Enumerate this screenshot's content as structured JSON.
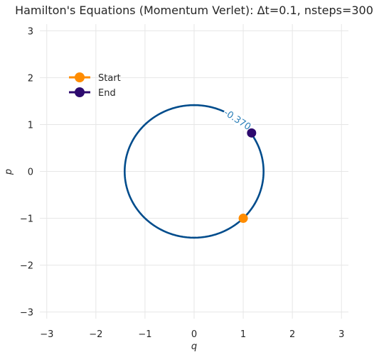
{
  "chart_data": {
    "type": "line",
    "title": "Hamilton's Equations (Momentum Verlet): Δt=0.1, nsteps=300",
    "xlabel": "q",
    "ylabel": "p",
    "xlim": [
      -3.14159,
      3.14159
    ],
    "ylim": [
      -3.14159,
      3.14159
    ],
    "x_ticks": [
      "−3",
      "−2",
      "−1",
      "0",
      "1",
      "2",
      "3"
    ],
    "y_ticks": [
      "−3",
      "−2",
      "−1",
      "0",
      "1",
      "2",
      "3"
    ],
    "grid": true,
    "contour": {
      "level_label": "-0.370",
      "radius": 1.414,
      "center": [
        0,
        0
      ],
      "label_at": [
        0.88,
        1.1
      ],
      "color": "#004c8c"
    },
    "points": [
      {
        "name": "Start",
        "x": 1.0,
        "y": -1.0,
        "color": "#ff8c00"
      },
      {
        "name": "End",
        "x": 1.17,
        "y": 0.82,
        "color": "#2d0a6e"
      }
    ],
    "legend": {
      "position": "upper-left",
      "entries": [
        {
          "label": "Start",
          "color": "#ff8c00"
        },
        {
          "label": "End",
          "color": "#2d0a6e"
        }
      ]
    }
  }
}
